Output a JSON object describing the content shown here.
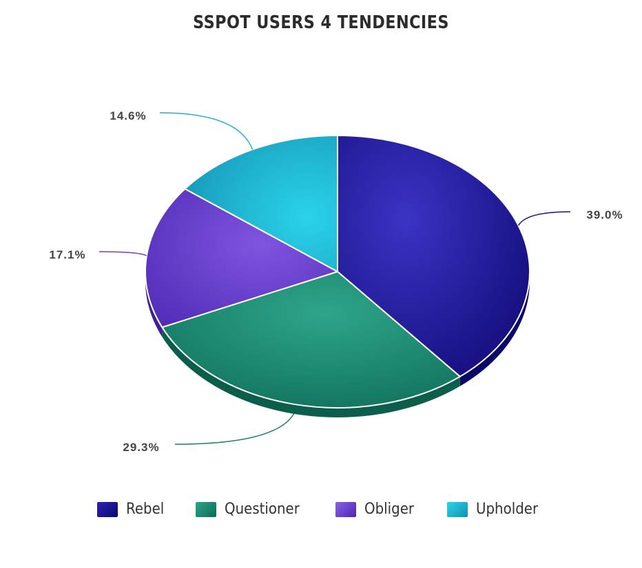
{
  "chart_data": {
    "type": "pie",
    "title": "SSPOT USERS 4 TENDENCIES",
    "categories": [
      "Rebel",
      "Questioner",
      "Obliger",
      "Upholder"
    ],
    "values": [
      39.0,
      29.3,
      17.1,
      14.6
    ],
    "value_labels": [
      "39.0%",
      "29.3%",
      "17.1%",
      "14.6%"
    ],
    "colors": [
      "#150f80",
      "#16806a",
      "#6a3fce",
      "#1bb3cf"
    ],
    "legend_position": "bottom",
    "style": "3d"
  }
}
